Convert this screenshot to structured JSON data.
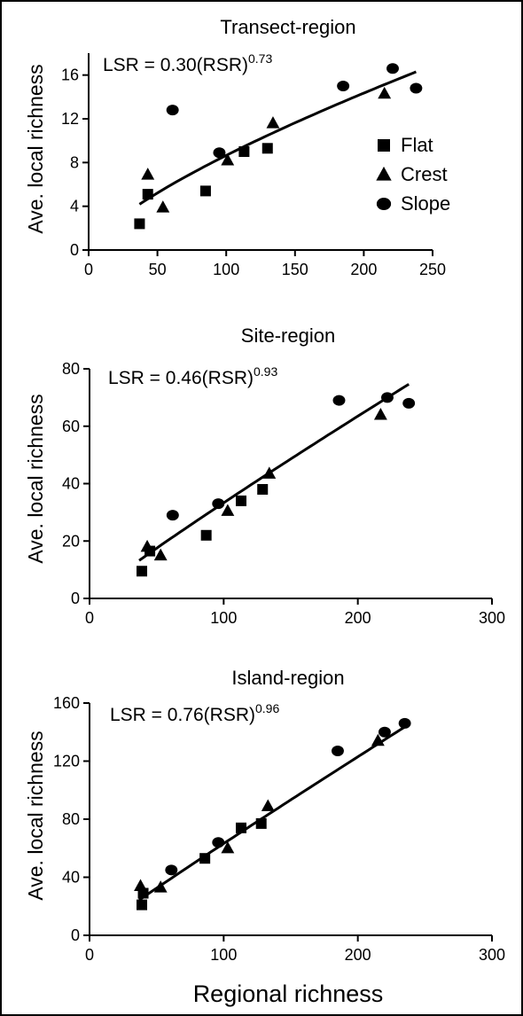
{
  "figure": {
    "x_title": "Regional richness",
    "y_title": "Ave. local richness"
  },
  "legend": [
    {
      "label": "Flat",
      "marker": "square"
    },
    {
      "label": "Crest",
      "marker": "triangle"
    },
    {
      "label": "Slope",
      "marker": "circle"
    }
  ],
  "chart_data": [
    {
      "type": "scatter",
      "title": "Transect-region",
      "equation": {
        "prefix": "LSR = 0.30(RSR)",
        "exponent": "0.73"
      },
      "xlabel": "",
      "ylabel": "Ave. local richness",
      "xlim": [
        0,
        250
      ],
      "ylim": [
        0,
        18
      ],
      "xticks": [
        0,
        50,
        100,
        150,
        200,
        250
      ],
      "yticks": [
        0,
        4,
        8,
        12,
        16
      ],
      "fit": {
        "coefficient": 0.3,
        "exponent": 0.73,
        "x_range": [
          37,
          238
        ]
      },
      "series": [
        {
          "name": "Flat",
          "marker": "square",
          "points": [
            [
              37,
              2.4
            ],
            [
              43,
              5.1
            ],
            [
              85,
              5.4
            ],
            [
              113,
              9.0
            ],
            [
              130,
              9.3
            ]
          ]
        },
        {
          "name": "Crest",
          "marker": "triangle",
          "points": [
            [
              43,
              6.9
            ],
            [
              54,
              3.9
            ],
            [
              101,
              8.2
            ],
            [
              134,
              11.6
            ],
            [
              215,
              14.3
            ]
          ]
        },
        {
          "name": "Slope",
          "marker": "circle",
          "points": [
            [
              61,
              12.8
            ],
            [
              95,
              8.9
            ],
            [
              185,
              15.0
            ],
            [
              221,
              16.6
            ],
            [
              238,
              14.8
            ]
          ]
        }
      ]
    },
    {
      "type": "scatter",
      "title": "Site-region",
      "equation": {
        "prefix": "LSR = 0.46(RSR)",
        "exponent": "0.93"
      },
      "xlabel": "",
      "ylabel": "Ave. local richness",
      "xlim": [
        0,
        300
      ],
      "ylim": [
        0,
        80
      ],
      "xticks": [
        0,
        100,
        200,
        300
      ],
      "yticks": [
        0,
        20,
        40,
        60,
        80
      ],
      "fit": {
        "coefficient": 0.46,
        "exponent": 0.93,
        "x_range": [
          37,
          238
        ]
      },
      "series": [
        {
          "name": "Flat",
          "marker": "square",
          "points": [
            [
              39,
              9.5
            ],
            [
              45,
              16.5
            ],
            [
              87,
              22.0
            ],
            [
              113,
              34.0
            ],
            [
              129,
              38.0
            ]
          ]
        },
        {
          "name": "Crest",
          "marker": "triangle",
          "points": [
            [
              43,
              18.0
            ],
            [
              53,
              15.0
            ],
            [
              103,
              30.5
            ],
            [
              134,
              43.5
            ],
            [
              217,
              64.0
            ]
          ]
        },
        {
          "name": "Slope",
          "marker": "circle",
          "points": [
            [
              62,
              29.0
            ],
            [
              96,
              33.0
            ],
            [
              186,
              69.0
            ],
            [
              222,
              70.0
            ],
            [
              238,
              68.0
            ]
          ]
        }
      ]
    },
    {
      "type": "scatter",
      "title": "Island-region",
      "equation": {
        "prefix": "LSR = 0.76(RSR)",
        "exponent": "0.96"
      },
      "xlabel": "Regional richness",
      "ylabel": "Ave. local richness",
      "xlim": [
        0,
        300
      ],
      "ylim": [
        0,
        160
      ],
      "xticks": [
        0,
        100,
        200,
        300
      ],
      "yticks": [
        0,
        40,
        80,
        120,
        160
      ],
      "fit": {
        "coefficient": 0.76,
        "exponent": 0.96,
        "x_range": [
          37,
          238
        ]
      },
      "series": [
        {
          "name": "Flat",
          "marker": "square",
          "points": [
            [
              39,
              21.0
            ],
            [
              40,
              29.0
            ],
            [
              86,
              53.0
            ],
            [
              113,
              74.0
            ],
            [
              128,
              77.0
            ]
          ]
        },
        {
          "name": "Crest",
          "marker": "triangle",
          "points": [
            [
              38,
              34.0
            ],
            [
              53,
              33.0
            ],
            [
              103,
              60.0
            ],
            [
              133,
              89.0
            ],
            [
              215,
              134.0
            ]
          ]
        },
        {
          "name": "Slope",
          "marker": "circle",
          "points": [
            [
              61,
              45.0
            ],
            [
              96,
              64.0
            ],
            [
              185,
              127.0
            ],
            [
              220,
              140.0
            ],
            [
              235,
              146.0
            ]
          ]
        }
      ]
    }
  ]
}
